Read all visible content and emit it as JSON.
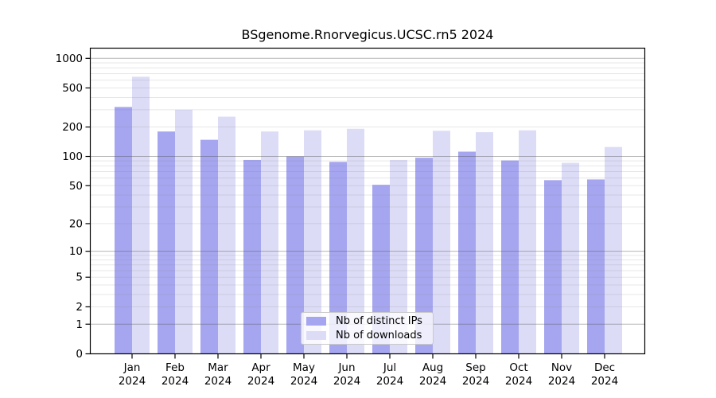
{
  "chart_data": {
    "type": "bar",
    "title": "BSgenome.Rnorvegicus.UCSC.rn5 2024",
    "categories": [
      "Jan",
      "Feb",
      "Mar",
      "Apr",
      "May",
      "Jun",
      "Jul",
      "Aug",
      "Sep",
      "Oct",
      "Nov",
      "Dec"
    ],
    "category_year": "2024",
    "series": [
      {
        "name": "Nb of distinct IPs",
        "color": "#a6a6f0",
        "values": [
          320,
          180,
          148,
          92,
          100,
          88,
          51,
          97,
          112,
          91,
          57,
          58
        ]
      },
      {
        "name": "Nb of downloads",
        "color": "#dcdcf7",
        "values": [
          650,
          300,
          255,
          180,
          185,
          192,
          92,
          183,
          177,
          185,
          86,
          125
        ]
      }
    ],
    "yscale": "log1p",
    "ylim": [
      0,
      1000
    ],
    "yticks": [
      0,
      1,
      2,
      5,
      10,
      20,
      50,
      100,
      200,
      500,
      1000
    ],
    "grid": "horizontal major+minor log gridlines",
    "legend_position": "inside-bottom-center",
    "colors": {
      "major_grid": "rgba(80,80,80,0.42)",
      "minor_grid": "rgba(120,120,120,0.18)",
      "axis": "#000000"
    }
  }
}
